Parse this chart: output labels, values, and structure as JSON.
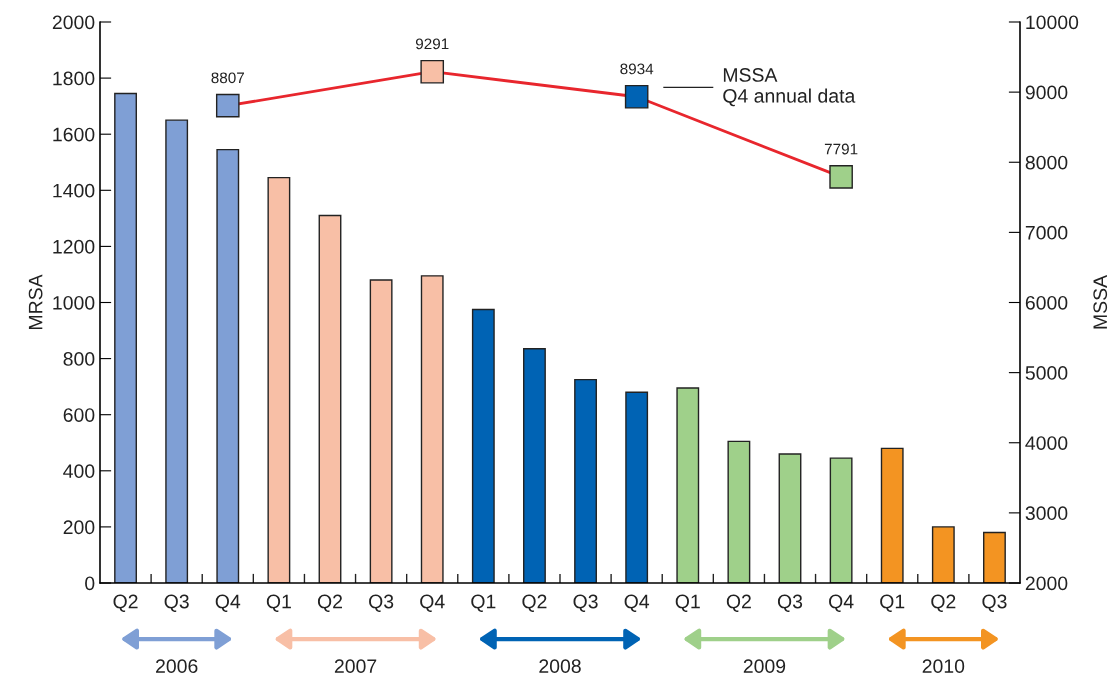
{
  "chart_data": {
    "type": "bar",
    "categories": [
      "Q2",
      "Q3",
      "Q4",
      "Q1",
      "Q2",
      "Q3",
      "Q4",
      "Q1",
      "Q2",
      "Q3",
      "Q4",
      "Q1",
      "Q2",
      "Q3",
      "Q4",
      "Q1",
      "Q2",
      "Q3"
    ],
    "ylabel": "MRSA",
    "y2label": "MSSA",
    "ylim": [
      0,
      2000
    ],
    "yticks": [
      0,
      200,
      400,
      600,
      800,
      1000,
      1200,
      1400,
      1600,
      1800,
      2000
    ],
    "y2lim": [
      2000,
      10000
    ],
    "y2ticks": [
      2000,
      3000,
      4000,
      5000,
      6000,
      7000,
      8000,
      9000,
      10000
    ],
    "series": [
      {
        "values": [
          1745,
          1650,
          1545,
          1445,
          1310,
          1080,
          1095,
          975,
          835,
          725,
          680,
          695,
          505,
          460,
          445,
          480,
          200,
          180
        ],
        "colors": [
          "#7f9fd5",
          "#7f9fd5",
          "#7f9fd5",
          "#f8bfa6",
          "#f8bfa6",
          "#f8bfa6",
          "#f8bfa6",
          "#0063b4",
          "#0063b4",
          "#0063b4",
          "#0063b4",
          "#9fd08a",
          "#9fd08a",
          "#9fd08a",
          "#9fd08a",
          "#f39422",
          "#f39422",
          "#f39422"
        ]
      },
      {
        "type": "line",
        "axis": "y2",
        "name": "MSSA\nQ4 annual data",
        "color": "#e8262d",
        "marker": "square",
        "values": [
          null,
          null,
          8807,
          null,
          null,
          null,
          9291,
          null,
          null,
          null,
          8934,
          null,
          null,
          null,
          7791,
          null,
          null,
          null
        ],
        "colors": [
          null,
          null,
          "#7f9fd5",
          null,
          null,
          null,
          "#f8bfa6",
          null,
          null,
          null,
          "#0063b4",
          null,
          null,
          null,
          "#9fd08a",
          null,
          null,
          null
        ],
        "value_labels": [
          null,
          null,
          "8807",
          null,
          null,
          null,
          "9291",
          null,
          null,
          null,
          "8934",
          null,
          null,
          null,
          "7791",
          null,
          null,
          null
        ]
      }
    ],
    "annotations": [
      "2006",
      "2007",
      "2008",
      "2009",
      "2010"
    ],
    "grid": false,
    "legend": "top right"
  }
}
